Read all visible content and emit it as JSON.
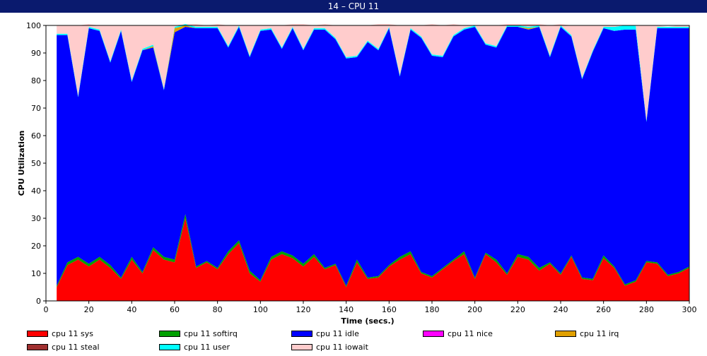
{
  "window": {
    "title": "14 – CPU 11"
  },
  "chart_data": {
    "type": "area",
    "stacked": true,
    "xlabel": "Time (secs.)",
    "ylabel": "CPU Utilization",
    "xlim": [
      0,
      300
    ],
    "ylim": [
      0,
      100
    ],
    "xticks": [
      0,
      20,
      40,
      60,
      80,
      100,
      120,
      140,
      160,
      180,
      200,
      220,
      240,
      260,
      280,
      300
    ],
    "yticks": [
      0,
      10,
      20,
      30,
      40,
      50,
      60,
      70,
      80,
      90,
      100
    ],
    "grid": false,
    "legend_position": "bottom",
    "x": [
      5,
      10,
      15,
      20,
      25,
      30,
      35,
      40,
      45,
      50,
      55,
      60,
      65,
      70,
      75,
      80,
      85,
      90,
      95,
      100,
      105,
      110,
      115,
      120,
      125,
      130,
      135,
      140,
      145,
      150,
      155,
      160,
      165,
      170,
      175,
      180,
      185,
      190,
      195,
      200,
      205,
      210,
      215,
      220,
      225,
      230,
      235,
      240,
      245,
      250,
      255,
      260,
      265,
      270,
      275,
      280,
      285,
      290,
      295,
      300
    ],
    "series": [
      {
        "name": "cpu 11 sys",
        "color": "#ff0000",
        "values": [
          5,
          13,
          15,
          12.5,
          15,
          12,
          8,
          15,
          10,
          18.5,
          15,
          14,
          30,
          12,
          14,
          11.5,
          17,
          21,
          10,
          7,
          15,
          17,
          15.5,
          12.5,
          16,
          11.5,
          13,
          5,
          14,
          8,
          8.5,
          12.5,
          15,
          17,
          10,
          8.5,
          11.5,
          14.5,
          17,
          8,
          17,
          14,
          9.5,
          16,
          15,
          11,
          13.5,
          9.5,
          16,
          8,
          7.5,
          15.5,
          12,
          5.5,
          7,
          14,
          13.5,
          9,
          10,
          12
        ]
      },
      {
        "name": "cpu 11 softirq",
        "color": "#00a000",
        "values": [
          0.5,
          1,
          1,
          1,
          1,
          1,
          0.5,
          1,
          0.5,
          1,
          1,
          1,
          1.5,
          0.5,
          0.5,
          0.5,
          1,
          1,
          1,
          0.5,
          1,
          1,
          1,
          1,
          1,
          0.5,
          0.5,
          0.5,
          1,
          0.5,
          0.5,
          0.5,
          1,
          1,
          0.5,
          0.5,
          0.5,
          0.5,
          1,
          0.5,
          0.5,
          1,
          0.5,
          1,
          1,
          1,
          0.5,
          0.5,
          0.5,
          0.5,
          0.5,
          1,
          0.5,
          0.5,
          0.5,
          0.5,
          0.5,
          0.5,
          0.5,
          0.5
        ]
      },
      {
        "name": "cpu 11 idle",
        "color": "#0000ff",
        "values": [
          91,
          82.5,
          58,
          85.5,
          82,
          73.5,
          89.5,
          63.5,
          80.5,
          72.5,
          60.5,
          82.5,
          68,
          86.5,
          84.5,
          87,
          74,
          77.5,
          77.5,
          90.5,
          82.5,
          73.5,
          82.5,
          77.5,
          81.5,
          86.5,
          81.5,
          82.5,
          73.5,
          85.5,
          82,
          86,
          65.5,
          80.5,
          85,
          80,
          76.5,
          81,
          80.5,
          91,
          75.5,
          77,
          89.5,
          82.5,
          82.5,
          87.5,
          74.5,
          89.5,
          79.5,
          72,
          82.5,
          82.5,
          85.5,
          92.5,
          91,
          50.5,
          85,
          89.5,
          88.5,
          86.5
        ]
      },
      {
        "name": "cpu 11 nice",
        "color": "#ff00ff",
        "values": [
          0,
          0,
          0,
          0,
          0,
          0,
          0,
          0,
          0,
          0,
          0,
          0,
          0,
          0,
          0,
          0,
          0,
          0,
          0,
          0,
          0,
          0,
          0,
          0,
          0,
          0,
          0,
          0,
          0,
          0,
          0,
          0,
          0,
          0,
          0,
          0,
          0,
          0,
          0,
          0,
          0,
          0,
          0,
          0,
          0,
          0,
          0,
          0,
          0,
          0,
          0,
          0,
          0,
          0,
          0,
          0,
          0,
          0,
          0,
          0
        ]
      },
      {
        "name": "cpu 11 irq",
        "color": "#e0a000",
        "values": [
          0,
          0,
          0,
          0,
          0,
          0,
          0,
          0,
          0,
          0.5,
          0,
          1.5,
          0.5,
          0,
          0,
          0,
          0,
          0,
          0,
          0,
          0,
          0,
          0,
          0,
          0,
          0,
          0,
          0,
          0,
          0,
          0,
          0,
          0,
          0,
          0,
          0,
          0,
          0,
          0,
          0,
          0,
          0,
          0,
          0,
          0.5,
          0,
          0,
          0,
          0,
          0,
          0,
          0,
          0,
          0,
          0,
          0,
          0,
          0,
          0,
          0
        ]
      },
      {
        "name": "cpu 11 steal",
        "color": "#a03030",
        "values": [
          0,
          0,
          0,
          0,
          0,
          0,
          0,
          0,
          0,
          0,
          0,
          0,
          0,
          0,
          0,
          0,
          0,
          0,
          0,
          0,
          0,
          0,
          0,
          0,
          0,
          0,
          0,
          0,
          0,
          0,
          0,
          0,
          0,
          0,
          0,
          0,
          0,
          0,
          0,
          0,
          0,
          0,
          0,
          0,
          0,
          0,
          0,
          0,
          0,
          0,
          0,
          0,
          0,
          0,
          0,
          0,
          0,
          0,
          0,
          0
        ]
      },
      {
        "name": "cpu 11 user",
        "color": "#00ffff",
        "values": [
          0.5,
          0.5,
          0.5,
          0.5,
          0.5,
          0.5,
          0.5,
          0.5,
          0.5,
          0.5,
          0.5,
          0.5,
          0.5,
          0.5,
          0.5,
          0.5,
          0.5,
          0.5,
          0.5,
          0.5,
          0.5,
          0.5,
          0.5,
          0.5,
          0.5,
          0.5,
          0.5,
          0.5,
          0.5,
          0.5,
          0.5,
          0.5,
          0.5,
          0.5,
          0.5,
          0.5,
          0.5,
          0.5,
          0.5,
          0.5,
          0.5,
          0.5,
          0.5,
          0.5,
          0.5,
          0.5,
          0.5,
          0.5,
          0.5,
          0.5,
          0.5,
          0.5,
          1.5,
          1.5,
          1.5,
          0.5,
          0.5,
          0.5,
          0.5,
          0.5
        ]
      },
      {
        "name": "cpu 11 iowait",
        "color": "#ffcccc",
        "values": [
          3,
          3,
          25.5,
          1,
          1.5,
          13,
          1.5,
          20,
          8.5,
          7,
          23,
          0.5,
          0,
          1,
          0.5,
          1,
          7.5,
          0,
          11,
          1.5,
          1,
          8,
          1,
          9,
          1,
          1.5,
          4.5,
          11.5,
          11,
          5.5,
          9,
          1,
          18,
          1,
          4,
          11,
          11,
          4,
          1,
          0,
          6.5,
          7.5,
          0.5,
          0.5,
          1,
          0.5,
          11,
          0.5,
          3.5,
          19,
          9,
          0.5,
          0.5,
          0,
          0,
          34.5,
          0.5,
          0,
          0.5,
          0.5
        ]
      }
    ]
  }
}
